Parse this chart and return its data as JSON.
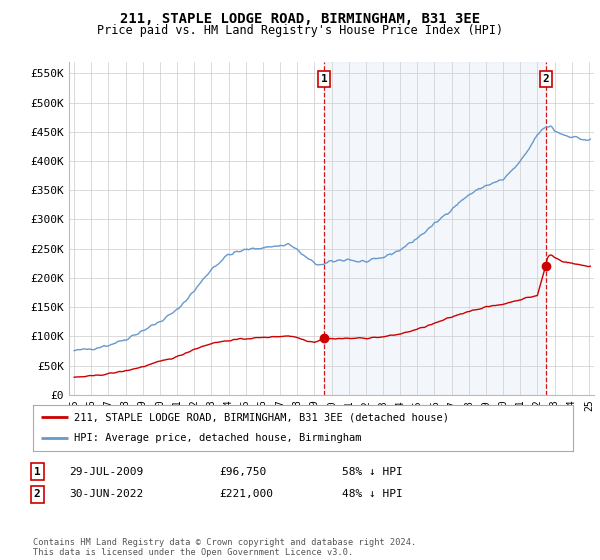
{
  "title": "211, STAPLE LODGE ROAD, BIRMINGHAM, B31 3EE",
  "subtitle": "Price paid vs. HM Land Registry's House Price Index (HPI)",
  "ylim": [
    0,
    570000
  ],
  "yticks": [
    0,
    50000,
    100000,
    150000,
    200000,
    250000,
    300000,
    350000,
    400000,
    450000,
    500000,
    550000
  ],
  "ytick_labels": [
    "£0",
    "£50K",
    "£100K",
    "£150K",
    "£200K",
    "£250K",
    "£300K",
    "£350K",
    "£400K",
    "£450K",
    "£500K",
    "£550K"
  ],
  "hpi_color": "#6699cc",
  "hpi_fill_color": "#ddeeff",
  "price_color": "#cc0000",
  "marker1_date": 2009.57,
  "marker1_price": 96750,
  "marker2_date": 2022.49,
  "marker2_price": 221000,
  "vline_color": "#cc0000",
  "legend_label1": "211, STAPLE LODGE ROAD, BIRMINGHAM, B31 3EE (detached house)",
  "legend_label2": "HPI: Average price, detached house, Birmingham",
  "table_row1": [
    "1",
    "29-JUL-2009",
    "£96,750",
    "58% ↓ HPI"
  ],
  "table_row2": [
    "2",
    "30-JUN-2022",
    "£221,000",
    "48% ↓ HPI"
  ],
  "footnote": "Contains HM Land Registry data © Crown copyright and database right 2024.\nThis data is licensed under the Open Government Licence v3.0.",
  "background_color": "#ffffff",
  "grid_color": "#cccccc",
  "box_color": "#cc0000"
}
